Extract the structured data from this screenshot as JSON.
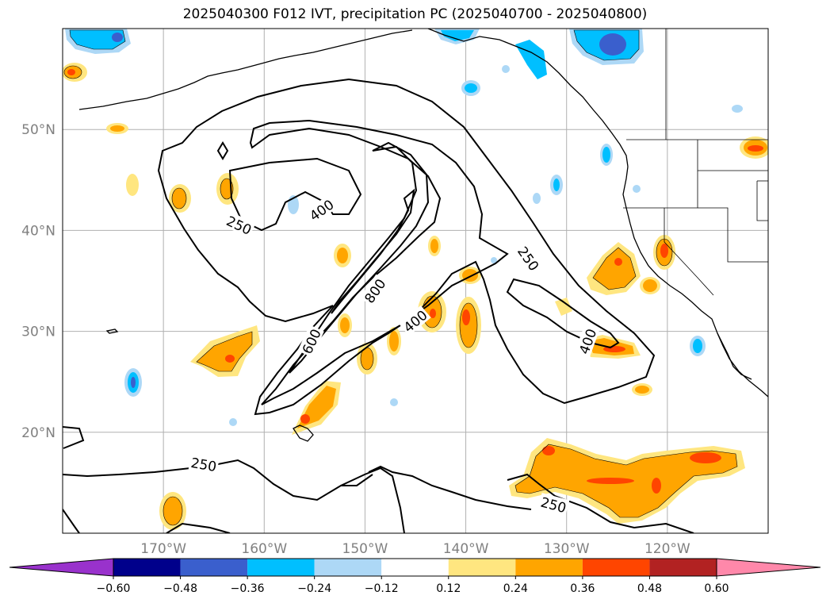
{
  "title": "2025040300 F012 IVT, precipitation PC (2025040700 - 2025040800)",
  "map": {
    "lon_range": [
      -180,
      -110
    ],
    "lat_range": [
      10,
      60
    ],
    "lat_labels": [
      {
        "lat": 50,
        "text": "50°N"
      },
      {
        "lat": 40,
        "text": "40°N"
      },
      {
        "lat": 30,
        "text": "30°N"
      },
      {
        "lat": 20,
        "text": "20°N"
      }
    ],
    "lon_labels": [
      {
        "lon": -170,
        "text": "170°W"
      },
      {
        "lon": -160,
        "text": "160°W"
      },
      {
        "lon": -150,
        "text": "150°W"
      },
      {
        "lon": -140,
        "text": "140°W"
      },
      {
        "lon": -130,
        "text": "130°W"
      },
      {
        "lon": -120,
        "text": "120°W"
      }
    ],
    "contour_labels": [
      {
        "text": "250",
        "lon": -162.5,
        "lat": 40.5,
        "rot": 25
      },
      {
        "text": "400",
        "lon": -154.3,
        "lat": 42.0,
        "rot": -35
      },
      {
        "text": "250",
        "lon": -133.8,
        "lat": 37.2,
        "rot": 55
      },
      {
        "text": "800",
        "lon": -149.0,
        "lat": 34.0,
        "rot": -55
      },
      {
        "text": "400",
        "lon": -145.0,
        "lat": 31.0,
        "rot": -40
      },
      {
        "text": "600",
        "lon": -155.3,
        "lat": 29.0,
        "rot": -65
      },
      {
        "text": "400",
        "lon": -127.9,
        "lat": 29.0,
        "rot": -70
      },
      {
        "text": "250",
        "lon": -166.0,
        "lat": 16.8,
        "rot": 10
      },
      {
        "text": "250",
        "lon": -131.3,
        "lat": 12.8,
        "rot": 15
      }
    ]
  },
  "colorbar": {
    "colors": [
      "#9932cc",
      "#00008b",
      "#3a5fcd",
      "#00bfff",
      "#add8f6",
      "#ffffff",
      "#ffe680",
      "#ffa500",
      "#ff4500",
      "#b22222",
      "#ff88aa"
    ],
    "tick_labels": [
      "−0.60",
      "−0.48",
      "−0.36",
      "−0.24",
      "−0.12",
      "0.12",
      "0.24",
      "0.36",
      "0.48",
      "0.60"
    ]
  }
}
